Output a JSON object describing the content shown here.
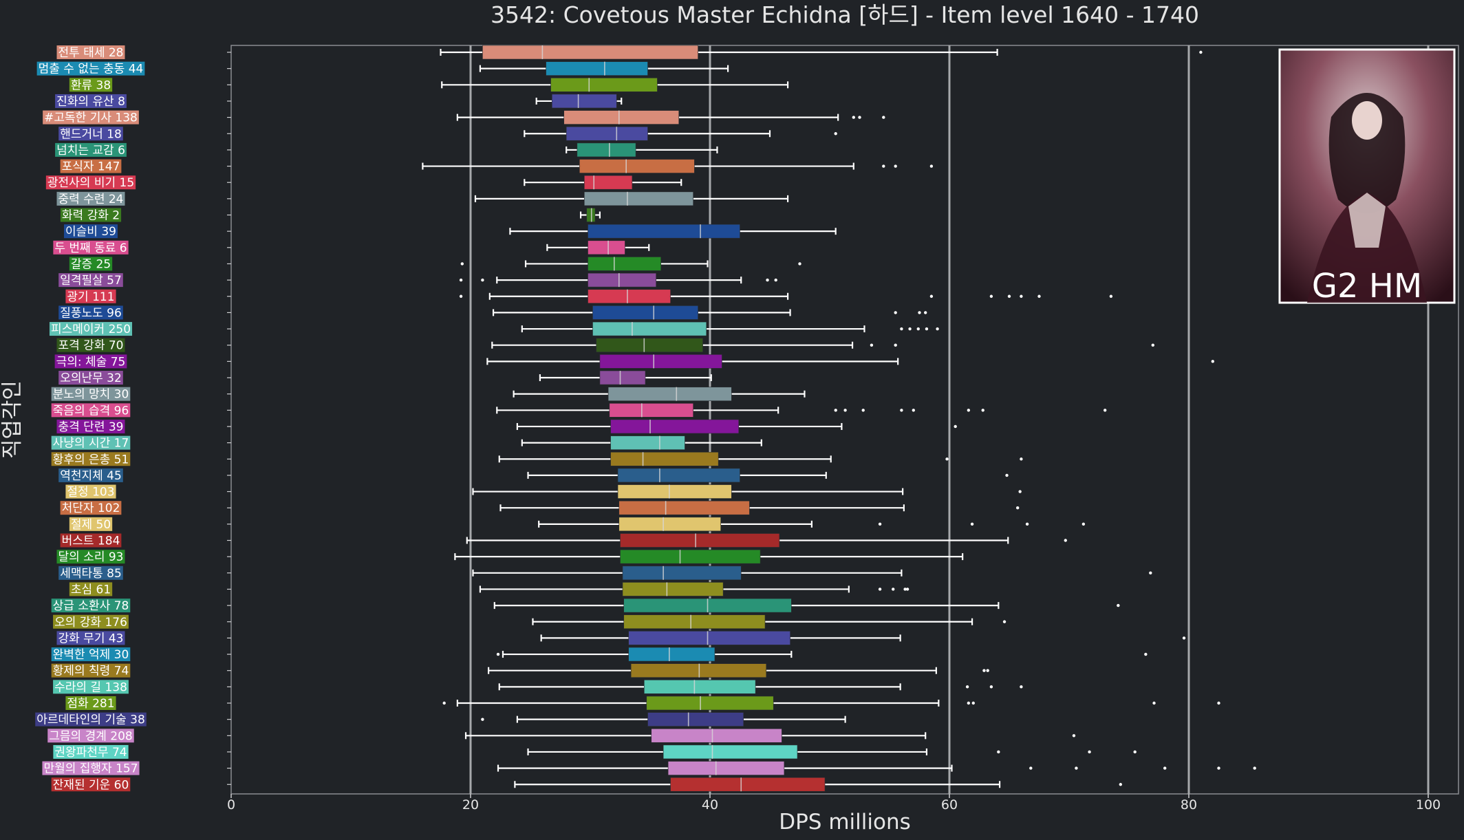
{
  "chart_data": {
    "type": "box",
    "orientation": "horizontal",
    "title": "3542: Covetous Master Echidna [하드] - Item level 1640 - 1740",
    "xlabel": "DPS millions",
    "ylabel": "직업각인",
    "xlim": [
      0,
      103
    ],
    "xticks": [
      0,
      20,
      40,
      60,
      80,
      100
    ],
    "gridlines_x": [
      20,
      40,
      60,
      80,
      100
    ],
    "portrait": {
      "caption": "G2 HM"
    },
    "categories": [
      {
        "label": "전투 태세 28",
        "color": "#d98c79",
        "whislo": 17.5,
        "q1": 21,
        "med": 26,
        "q3": 39,
        "whishi": 64,
        "fliers": [
          81
        ]
      },
      {
        "label": "멈출 수 없는 충동 44",
        "color": "#1b8bb2",
        "whislo": 20.8,
        "q1": 26.3,
        "med": 31.2,
        "q3": 34.8,
        "whishi": 41.5,
        "fliers": []
      },
      {
        "label": "환류 38",
        "color": "#6b9a1a",
        "whislo": 17.6,
        "q1": 26.7,
        "med": 29.9,
        "q3": 35.6,
        "whishi": 46.5,
        "fliers": []
      },
      {
        "label": "진화의 유산 8",
        "color": "#4a4aa0",
        "whislo": 25.5,
        "q1": 26.8,
        "med": 29,
        "q3": 32.2,
        "whishi": 32.6,
        "fliers": []
      },
      {
        "label": "#고독한 기사 138",
        "color": "#d98c79",
        "whislo": 18.9,
        "q1": 27.8,
        "med": 32.4,
        "q3": 37.4,
        "whishi": 50.7,
        "fliers": [
          52,
          52.5,
          54.5
        ]
      },
      {
        "label": "핸드거너 18",
        "color": "#4a4aa0",
        "whislo": 24.5,
        "q1": 28,
        "med": 32.2,
        "q3": 34.8,
        "whishi": 45,
        "fliers": [
          50.5
        ]
      },
      {
        "label": "넘치는 교감 6",
        "color": "#2a9477",
        "whislo": 28,
        "q1": 28.9,
        "med": 31.6,
        "q3": 33.8,
        "whishi": 40.6,
        "fliers": []
      },
      {
        "label": "포식자 147",
        "color": "#c86e44",
        "whislo": 16,
        "q1": 29.1,
        "med": 33,
        "q3": 38.7,
        "whishi": 52,
        "fliers": [
          54.5,
          55.5,
          58.5
        ]
      },
      {
        "label": "광전사의 비기 15",
        "color": "#d63a52",
        "whislo": 24.5,
        "q1": 29.5,
        "med": 30.3,
        "q3": 33.5,
        "whishi": 37.6,
        "fliers": []
      },
      {
        "label": "중력 수련 24",
        "color": "#7e959b",
        "whislo": 20.4,
        "q1": 29.5,
        "med": 33.1,
        "q3": 38.6,
        "whishi": 46.5,
        "fliers": []
      },
      {
        "label": "화력 강화 2",
        "color": "#3a7a1f",
        "whislo": 29.2,
        "q1": 29.7,
        "med": 30.1,
        "q3": 30.4,
        "whishi": 30.8,
        "fliers": []
      },
      {
        "label": "이슬비 39",
        "color": "#1e4b96",
        "whislo": 23.3,
        "q1": 29.8,
        "med": 39.2,
        "q3": 42.5,
        "whishi": 50.5,
        "fliers": []
      },
      {
        "label": "두 번째 동료 6",
        "color": "#d94e8f",
        "whislo": 26.4,
        "q1": 29.8,
        "med": 31.5,
        "q3": 32.9,
        "whishi": 34.9,
        "fliers": []
      },
      {
        "label": "갈증 25",
        "color": "#258a26",
        "whislo": 24.6,
        "q1": 29.8,
        "med": 32,
        "q3": 35.9,
        "whishi": 39.8,
        "fliers": [
          19.3,
          47.5
        ]
      },
      {
        "label": "일격필살 57",
        "color": "#8a4c9a",
        "whislo": 22.2,
        "q1": 29.8,
        "med": 32.4,
        "q3": 35.5,
        "whishi": 42.6,
        "fliers": [
          19.2,
          21,
          44.8,
          45.5
        ]
      },
      {
        "label": "광기 111",
        "color": "#d63a52",
        "whislo": 21.6,
        "q1": 29.8,
        "med": 33.1,
        "q3": 36.7,
        "whishi": 46.5,
        "fliers": [
          19.2,
          58.5,
          63.5,
          65,
          66,
          67.5,
          73.5
        ]
      },
      {
        "label": "질풍노도 96",
        "color": "#1e4b96",
        "whislo": 21.9,
        "q1": 30.2,
        "med": 35.3,
        "q3": 39,
        "whishi": 46.7,
        "fliers": [
          55.5,
          57.5,
          58
        ]
      },
      {
        "label": "피스메이커 250",
        "color": "#5fc1b4",
        "whislo": 24.3,
        "q1": 30.2,
        "med": 33.5,
        "q3": 39.7,
        "whishi": 52.9,
        "fliers": [
          56,
          56.7,
          57.4,
          58.1,
          59
        ]
      },
      {
        "label": "포격 강화 70",
        "color": "#31571a",
        "whislo": 21.8,
        "q1": 30.5,
        "med": 34.5,
        "q3": 39.4,
        "whishi": 51.9,
        "fliers": [
          53.5,
          55.5,
          77
        ]
      },
      {
        "label": "극의: 체술 75",
        "color": "#84169a",
        "whislo": 21.4,
        "q1": 30.8,
        "med": 35.3,
        "q3": 41,
        "whishi": 55.7,
        "fliers": [
          82
        ]
      },
      {
        "label": "오의난무 32",
        "color": "#8a4c9a",
        "whislo": 25.8,
        "q1": 30.8,
        "med": 32.5,
        "q3": 34.6,
        "whishi": 40.1,
        "fliers": []
      },
      {
        "label": "분노의 망치 30",
        "color": "#7e959b",
        "whislo": 23.6,
        "q1": 31.5,
        "med": 37.2,
        "q3": 41.8,
        "whishi": 47.9,
        "fliers": []
      },
      {
        "label": "죽음의 습격 96",
        "color": "#d94e8f",
        "whislo": 22.2,
        "q1": 31.6,
        "med": 34.3,
        "q3": 38.6,
        "whishi": 45.7,
        "fliers": [
          50.5,
          51.3,
          52.8,
          56,
          57,
          61.6,
          62.8,
          73
        ]
      },
      {
        "label": "충격 단련 39",
        "color": "#84169a",
        "whislo": 23.9,
        "q1": 31.7,
        "med": 35,
        "q3": 42.4,
        "whishi": 51,
        "fliers": [
          60.5
        ]
      },
      {
        "label": "사냥의 시간 17",
        "color": "#5fc1b4",
        "whislo": 24.3,
        "q1": 31.7,
        "med": 35.8,
        "q3": 37.9,
        "whishi": 44.3,
        "fliers": []
      },
      {
        "label": "황후의 은총 51",
        "color": "#9a7a1f",
        "whislo": 22.4,
        "q1": 31.7,
        "med": 34.4,
        "q3": 40.7,
        "whishi": 50.1,
        "fliers": [
          59.8,
          66
        ]
      },
      {
        "label": "역천지체 45",
        "color": "#2a5e8c",
        "whislo": 24.8,
        "q1": 32.3,
        "med": 35.8,
        "q3": 42.5,
        "whishi": 49.7,
        "fliers": [
          64.8
        ]
      },
      {
        "label": "절정 103",
        "color": "#e0c56e",
        "whislo": 20.2,
        "q1": 32.3,
        "med": 36.6,
        "q3": 41.8,
        "whishi": 56.1,
        "fliers": [
          65.9
        ]
      },
      {
        "label": "처단자 102",
        "color": "#c86e44",
        "whislo": 22.5,
        "q1": 32.4,
        "med": 36.3,
        "q3": 43.3,
        "whishi": 56.2,
        "fliers": [
          65.7
        ]
      },
      {
        "label": "절제 50",
        "color": "#e0c56e",
        "whislo": 25.7,
        "q1": 32.4,
        "med": 36.1,
        "q3": 40.9,
        "whishi": 48.5,
        "fliers": [
          54.2,
          61.9,
          66.5,
          71.2
        ]
      },
      {
        "label": "버스트 184",
        "color": "#a52a2a",
        "whislo": 19.7,
        "q1": 32.5,
        "med": 38.8,
        "q3": 45.8,
        "whishi": 64.9,
        "fliers": [
          69.7
        ]
      },
      {
        "label": "달의 소리 93",
        "color": "#258a26",
        "whislo": 18.7,
        "q1": 32.5,
        "med": 37.5,
        "q3": 44.2,
        "whishi": 61.1,
        "fliers": []
      },
      {
        "label": "세맥타통 85",
        "color": "#2a5e8c",
        "whislo": 20.2,
        "q1": 32.7,
        "med": 36.1,
        "q3": 42.6,
        "whishi": 56,
        "fliers": [
          76.8
        ]
      },
      {
        "label": "초심 61",
        "color": "#8e8e1f",
        "whislo": 20.8,
        "q1": 32.7,
        "med": 36.4,
        "q3": 41.1,
        "whishi": 51.6,
        "fliers": [
          54.2,
          55.3,
          56.3,
          56.5
        ]
      },
      {
        "label": "상급 소환사 78",
        "color": "#2a9477",
        "whislo": 22,
        "q1": 32.8,
        "med": 39.8,
        "q3": 46.8,
        "whishi": 64.1,
        "fliers": [
          74.1
        ]
      },
      {
        "label": "오의 강화 176",
        "color": "#8e8e1f",
        "whislo": 25.2,
        "q1": 32.8,
        "med": 38.4,
        "q3": 44.6,
        "whishi": 61.9,
        "fliers": [
          64.6
        ]
      },
      {
        "label": "강화 무기 43",
        "color": "#4a4aa0",
        "whislo": 25.9,
        "q1": 33.2,
        "med": 39.8,
        "q3": 46.7,
        "whishi": 55.9,
        "fliers": [
          79.6
        ]
      },
      {
        "label": "완벽한 억제 30",
        "color": "#1b8bb2",
        "whislo": 22.7,
        "q1": 33.2,
        "med": 36.6,
        "q3": 40.4,
        "whishi": 46.8,
        "fliers": [
          22.3,
          76.4
        ]
      },
      {
        "label": "황제의 칙령 74",
        "color": "#9a7a1f",
        "whislo": 21.5,
        "q1": 33.4,
        "med": 39.1,
        "q3": 44.7,
        "whishi": 58.9,
        "fliers": [
          62.9,
          63.2
        ]
      },
      {
        "label": "수라의 길 138",
        "color": "#55c7b0",
        "whislo": 22.4,
        "q1": 34.5,
        "med": 38.7,
        "q3": 43.8,
        "whishi": 55.9,
        "fliers": [
          61.5,
          63.5,
          66
        ]
      },
      {
        "label": "점화 281",
        "color": "#6b9a1a",
        "whislo": 18.9,
        "q1": 34.7,
        "med": 39.2,
        "q3": 45.3,
        "whishi": 59.1,
        "fliers": [
          17.8,
          61.6,
          62,
          77.1,
          82.5
        ]
      },
      {
        "label": "아르데타인의 기술 38",
        "color": "#3d3d86",
        "whislo": 23.9,
        "q1": 34.8,
        "med": 38.2,
        "q3": 42.8,
        "whishi": 51.3,
        "fliers": [
          21
        ]
      },
      {
        "label": "그믐의 경계 208",
        "color": "#c884c8",
        "whislo": 19.6,
        "q1": 35.1,
        "med": 40.2,
        "q3": 46,
        "whishi": 58,
        "fliers": [
          70.4
        ]
      },
      {
        "label": "권왕파천무 74",
        "color": "#5ed4c4",
        "whislo": 24.8,
        "q1": 36.1,
        "med": 40.2,
        "q3": 47.3,
        "whishi": 58.1,
        "fliers": [
          64.1,
          71.7,
          75.5
        ]
      },
      {
        "label": "만월의 집행자 157",
        "color": "#c884c8",
        "whislo": 22.3,
        "q1": 36.5,
        "med": 40.5,
        "q3": 46.2,
        "whishi": 60.2,
        "fliers": [
          66.8,
          70.6,
          78,
          82.5,
          85.5
        ]
      },
      {
        "label": "잔재된 기운 60",
        "color": "#b53030",
        "whislo": 23.7,
        "q1": 36.7,
        "med": 42.6,
        "q3": 49.6,
        "whishi": 64.2,
        "fliers": [
          74.3
        ]
      }
    ]
  }
}
